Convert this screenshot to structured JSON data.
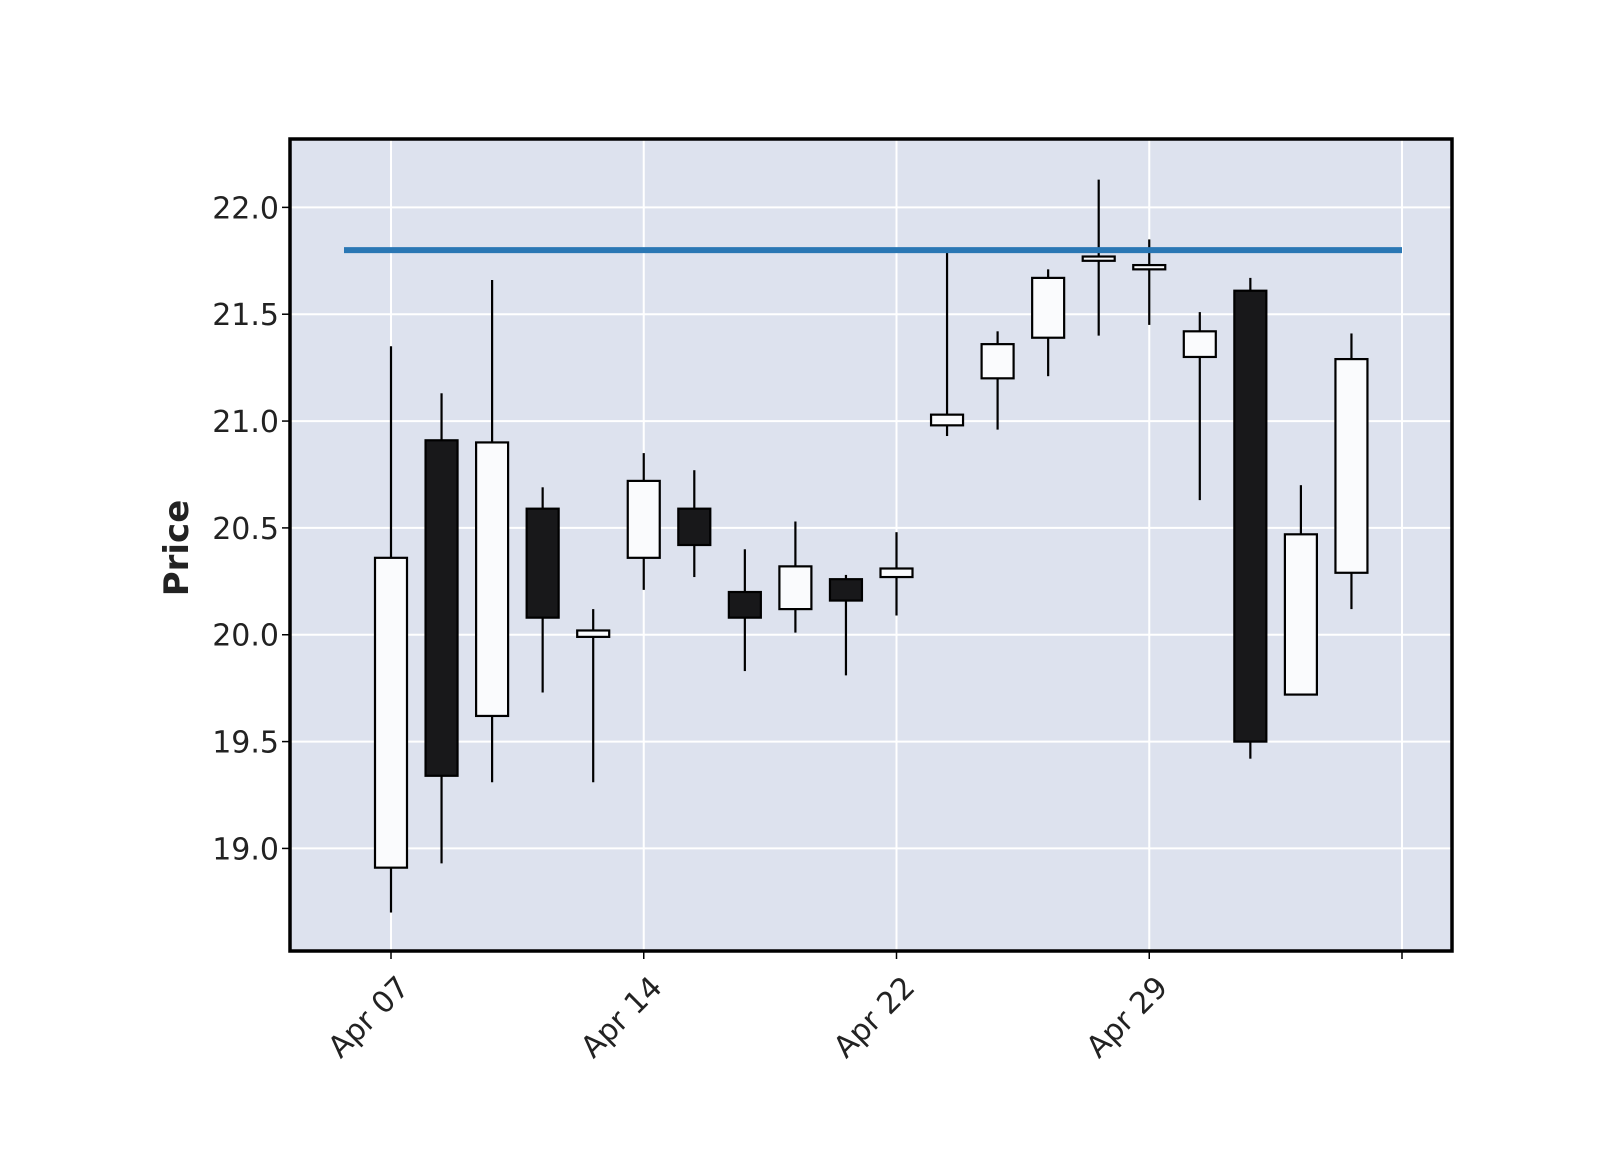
{
  "chart_data": {
    "type": "candlestick",
    "title": "",
    "xlabel": "",
    "ylabel": "Price",
    "ylim": [
      18.52,
      22.32
    ],
    "yticks": [
      19.0,
      19.5,
      20.0,
      20.5,
      21.0,
      21.5,
      22.0
    ],
    "ytick_labels": [
      "19.0",
      "19.5",
      "20.0",
      "20.5",
      "21.0",
      "21.5",
      "22.0"
    ],
    "xtick_labels": [
      "Apr 07",
      "Apr 14",
      "Apr 22",
      "Apr 29"
    ],
    "xtick_positions": [
      0,
      5,
      10,
      15,
      20
    ],
    "grid": true,
    "colors": {
      "background": "#dde2ee",
      "grid": "#ffffff",
      "up_body": "#fafbfd",
      "down_body": "#18181a",
      "edge": "#000000",
      "hline": "#2a77b4"
    },
    "hline": {
      "y": 21.8
    },
    "candles": [
      {
        "open": 18.91,
        "high": 21.35,
        "low": 18.7,
        "close": 20.36
      },
      {
        "open": 20.91,
        "high": 21.13,
        "low": 18.93,
        "close": 19.34
      },
      {
        "open": 19.62,
        "high": 21.66,
        "low": 19.31,
        "close": 20.9
      },
      {
        "open": 20.59,
        "high": 20.69,
        "low": 19.73,
        "close": 20.08
      },
      {
        "open": 19.99,
        "high": 20.12,
        "low": 19.31,
        "close": 20.02
      },
      {
        "open": 20.36,
        "high": 20.85,
        "low": 20.21,
        "close": 20.72
      },
      {
        "open": 20.59,
        "high": 20.77,
        "low": 20.27,
        "close": 20.42
      },
      {
        "open": 20.2,
        "high": 20.4,
        "low": 19.83,
        "close": 20.08
      },
      {
        "open": 20.12,
        "high": 20.53,
        "low": 20.01,
        "close": 20.32
      },
      {
        "open": 20.26,
        "high": 20.28,
        "low": 19.81,
        "close": 20.16
      },
      {
        "open": 20.27,
        "high": 20.48,
        "low": 20.09,
        "close": 20.31
      },
      {
        "open": 20.98,
        "high": 21.79,
        "low": 20.93,
        "close": 21.03
      },
      {
        "open": 21.2,
        "high": 21.42,
        "low": 20.96,
        "close": 21.36
      },
      {
        "open": 21.39,
        "high": 21.71,
        "low": 21.21,
        "close": 21.67
      },
      {
        "open": 21.75,
        "high": 22.13,
        "low": 21.4,
        "close": 21.77
      },
      {
        "open": 21.71,
        "high": 21.85,
        "low": 21.45,
        "close": 21.73
      },
      {
        "open": 21.3,
        "high": 21.51,
        "low": 20.63,
        "close": 21.42
      },
      {
        "open": 21.61,
        "high": 21.67,
        "low": 19.42,
        "close": 19.5
      },
      {
        "open": 19.72,
        "high": 20.7,
        "low": null,
        "close": 20.47
      },
      {
        "open": 20.29,
        "high": 21.41,
        "low": 20.12,
        "close": 21.29
      }
    ]
  }
}
